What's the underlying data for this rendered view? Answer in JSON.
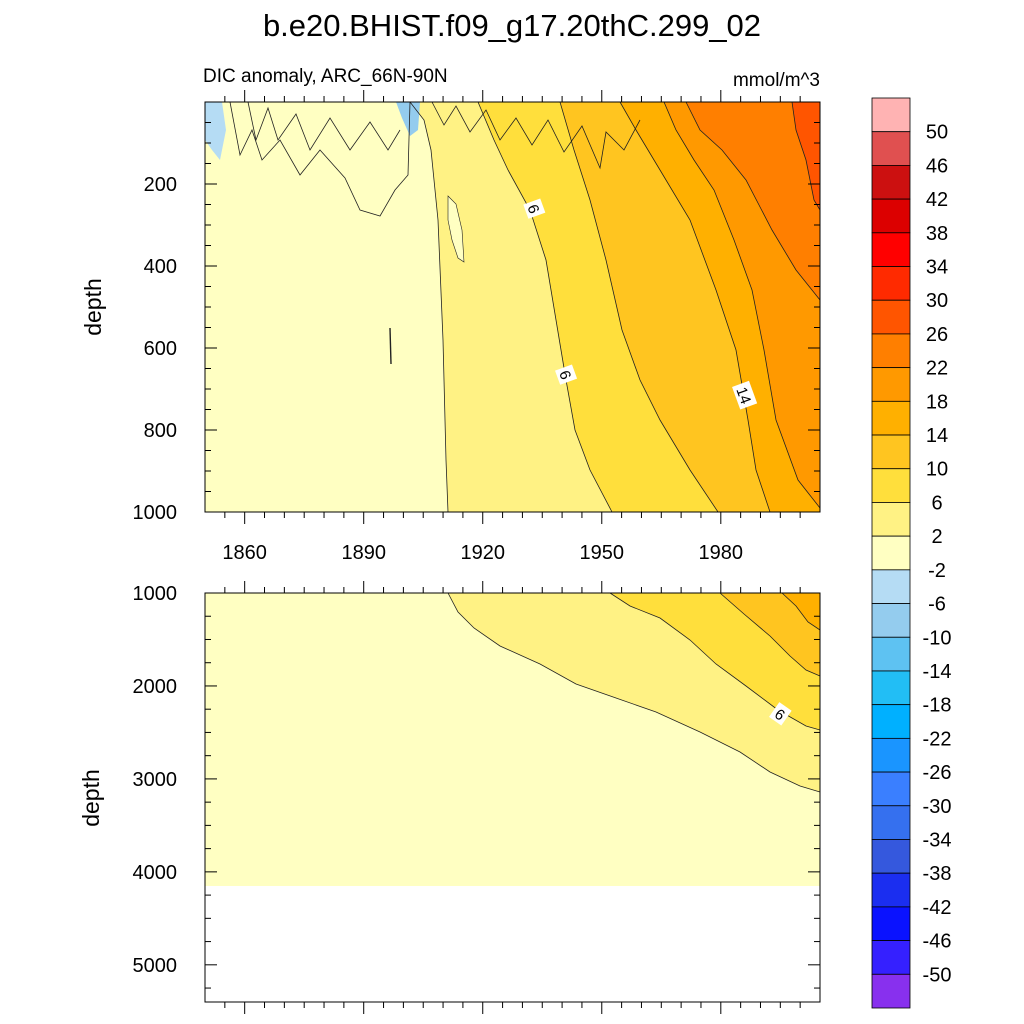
{
  "title": "b.e20.BHIST.f09_g17.20thC.299_02",
  "chart_data": {
    "type": "contour",
    "subtitle_left": "DIC anomaly, ARC_66N-90N",
    "subtitle_right": "mmol/m^3",
    "xlim": [
      1850,
      2005
    ],
    "x_ticks": [
      "1860",
      "1890",
      "1920",
      "1950",
      "1980"
    ],
    "x_tick_values": [
      1860,
      1890,
      1920,
      1950,
      1980
    ],
    "panels": [
      {
        "ylabel": "depth",
        "ylim": [
          0,
          1000
        ],
        "y_ticks": [
          "200",
          "400",
          "600",
          "800",
          "1000"
        ],
        "y_tick_values": [
          200,
          400,
          600,
          800,
          1000
        ],
        "contour_labels": [
          {
            "text": "6",
            "x": 1933,
            "y": 260
          },
          {
            "text": "6",
            "x": 1941,
            "y": 665
          },
          {
            "text": "14",
            "x": 1986,
            "y": 715
          }
        ]
      },
      {
        "ylabel": "depth",
        "ylim": [
          1000,
          5400
        ],
        "y_ticks": [
          "1000",
          "2000",
          "3000",
          "4000",
          "5000"
        ],
        "y_tick_values": [
          1000,
          2000,
          3000,
          4000,
          5000
        ],
        "contour_labels": [
          {
            "text": "6",
            "x": 1995,
            "y": 2300
          }
        ]
      }
    ],
    "colorbar": {
      "labels": [
        "50",
        "46",
        "42",
        "38",
        "34",
        "30",
        "26",
        "22",
        "18",
        "14",
        "10",
        "6",
        "2",
        "-2",
        "-6",
        "-10",
        "-14",
        "-18",
        "-22",
        "-26",
        "-30",
        "-34",
        "-38",
        "-42",
        "-46",
        "-50"
      ],
      "colors": [
        "#ffb3b3",
        "#e05050",
        "#cc1010",
        "#dc0000",
        "#ff0000",
        "#ff2a00",
        "#ff5500",
        "#ff7f00",
        "#ff9900",
        "#ffb000",
        "#ffc520",
        "#ffdf3c",
        "#fff284",
        "#ffffc2",
        "#b5dcf4",
        "#94ccee",
        "#5ec2f2",
        "#22bef5",
        "#00b0ff",
        "#1a95ff",
        "#3a7fff",
        "#3570ef",
        "#3558dd",
        "#1b2ef0",
        "#0a12ff",
        "#3520ff",
        "#8830ee"
      ]
    }
  }
}
